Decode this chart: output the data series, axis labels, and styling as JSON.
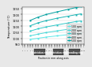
{
  "ylabel": "Temperature (°C)",
  "xlabel": "Position in mm along axis",
  "ylim": [
    950,
    1260
  ],
  "xlim": [
    0,
    23
  ],
  "yticks": [
    950,
    1000,
    1050,
    1100,
    1150,
    1200,
    1250
  ],
  "bg_color": "#e8e8e8",
  "plot_bg": "#ffffff",
  "line_colors": [
    "#60e8e8",
    "#48d8d8",
    "#30c8c8",
    "#18b4b4",
    "#00a0a0"
  ],
  "labels": [
    "100 rpm",
    "200 rpm",
    "300 rpm",
    "400 rpm",
    "500 rpm"
  ],
  "key_x": [
    3,
    6,
    9,
    13,
    17,
    20,
    22
  ],
  "line_data": [
    [
      990,
      1000,
      1010,
      1020,
      1030,
      1038,
      1042
    ],
    [
      1020,
      1035,
      1048,
      1062,
      1075,
      1085,
      1090
    ],
    [
      1060,
      1080,
      1095,
      1112,
      1128,
      1140,
      1145
    ],
    [
      1105,
      1130,
      1148,
      1168,
      1185,
      1198,
      1205
    ],
    [
      1150,
      1178,
      1200,
      1222,
      1242,
      1258,
      1265
    ]
  ],
  "marker_x": [
    3,
    6,
    9,
    13,
    17,
    20,
    22
  ],
  "xtick_spacing": 1,
  "ring_configs": [
    {
      "x_start": 4.5,
      "x_end": 8.5,
      "label": "Restriction ring"
    },
    {
      "x_start": 11.5,
      "x_end": 15.5,
      "label": "Restriction ring"
    },
    {
      "x_start": 17.5,
      "x_end": 21.5,
      "label": "Kneading ring"
    }
  ],
  "ring_color": "#505050",
  "ring_label_color": "white",
  "bottom_bg": "#b0b0b0"
}
